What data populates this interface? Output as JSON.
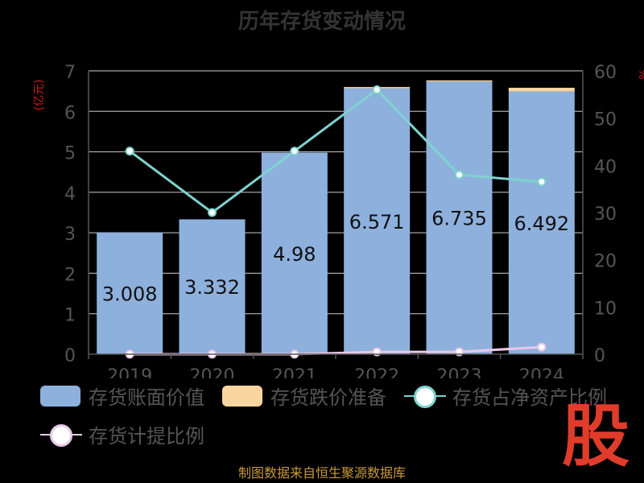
{
  "title": "历年存货变动情况",
  "source": "制图数据来自恒生聚源数据库",
  "logo_text": "股",
  "colors": {
    "book": "#8eb0dd",
    "reserve": "#f9d5a0",
    "ratio": "#7fd3cf",
    "provision": "#e8c8e8",
    "axis_text": "#555555",
    "unit_text": "#d31a1a"
  },
  "chart_data": {
    "type": "bar",
    "categories": [
      "2019",
      "2020",
      "2021",
      "2022",
      "2023",
      "2024"
    ],
    "y_left_unit": "(亿元)",
    "y_right_unit": "%",
    "ylim_left": [
      0,
      7
    ],
    "ylim_right": [
      0,
      60
    ],
    "grid": true,
    "legend_position": "bottom",
    "series": [
      {
        "name": "存货账面价值",
        "kind": "bar",
        "axis": "left",
        "values": [
          3.008,
          3.332,
          4.98,
          6.571,
          6.735,
          6.492
        ],
        "labels": [
          "3.008",
          "3.332",
          "4.98",
          "6.571",
          "6.735",
          "6.492"
        ]
      },
      {
        "name": "存货跌价准备",
        "kind": "bar",
        "axis": "left",
        "stacked": true,
        "values": [
          0.0,
          0.0,
          0.0,
          0.03,
          0.03,
          0.09
        ]
      },
      {
        "name": "存货占净资产比例",
        "kind": "line",
        "axis": "right",
        "values": [
          43,
          30,
          43,
          56,
          38,
          36.5
        ]
      },
      {
        "name": "存货计提比例",
        "kind": "line",
        "axis": "right",
        "values": [
          0,
          0,
          0,
          0.5,
          0.5,
          1.5
        ]
      }
    ]
  }
}
